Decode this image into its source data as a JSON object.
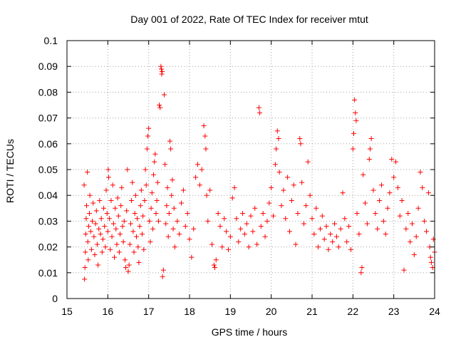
{
  "chart_data": {
    "type": "scatter",
    "title": "Day 001 of 2022, Rate Of TEC Index for receiver mtut",
    "xlabel": "GPS time / hours",
    "ylabel": "ROTI / TECUs",
    "xlim": [
      15,
      24
    ],
    "ylim": [
      0,
      0.1
    ],
    "x_ticks": [
      "15",
      "16",
      "17",
      "18",
      "19",
      "20",
      "21",
      "22",
      "23",
      "24"
    ],
    "y_ticks": [
      "0",
      "0.01",
      "0.02",
      "0.03",
      "0.04",
      "0.05",
      "0.06",
      "0.07",
      "0.08",
      "0.09",
      "0.1"
    ],
    "grid": true,
    "marker": "+",
    "color": "#ff0000",
    "series": [
      {
        "points": [
          [
            15.42,
            0.044
          ],
          [
            15.43,
            0.0075
          ],
          [
            15.44,
            0.012
          ],
          [
            15.45,
            0.018
          ],
          [
            15.46,
            0.025
          ],
          [
            15.47,
            0.031
          ],
          [
            15.48,
            0.036
          ],
          [
            15.5,
            0.049
          ],
          [
            15.51,
            0.022
          ],
          [
            15.52,
            0.015
          ],
          [
            15.53,
            0.028
          ],
          [
            15.55,
            0.033
          ],
          [
            15.56,
            0.04
          ],
          [
            15.58,
            0.026
          ],
          [
            15.6,
            0.019
          ],
          [
            15.62,
            0.03
          ],
          [
            15.64,
            0.037
          ],
          [
            15.66,
            0.024
          ],
          [
            15.68,
            0.017
          ],
          [
            15.7,
            0.029
          ],
          [
            15.72,
            0.034
          ],
          [
            15.74,
            0.021
          ],
          [
            15.76,
            0.013
          ],
          [
            15.78,
            0.027
          ],
          [
            15.8,
            0.038
          ],
          [
            15.82,
            0.025
          ],
          [
            15.84,
            0.031
          ],
          [
            15.86,
            0.018
          ],
          [
            15.88,
            0.023
          ],
          [
            15.9,
            0.035
          ],
          [
            15.92,
            0.028
          ],
          [
            15.94,
            0.02
          ],
          [
            15.96,
            0.042
          ],
          [
            15.98,
            0.033
          ],
          [
            16.0,
            0.026
          ],
          [
            16.01,
            0.05
          ],
          [
            16.02,
            0.047
          ],
          [
            16.04,
            0.031
          ],
          [
            16.06,
            0.019
          ],
          [
            16.08,
            0.038
          ],
          [
            16.1,
            0.024
          ],
          [
            16.12,
            0.044
          ],
          [
            16.14,
            0.029
          ],
          [
            16.16,
            0.016
          ],
          [
            16.18,
            0.035
          ],
          [
            16.2,
            0.027
          ],
          [
            16.22,
            0.021
          ],
          [
            16.24,
            0.039
          ],
          [
            16.26,
            0.032
          ],
          [
            16.28,
            0.018
          ],
          [
            16.3,
            0.025
          ],
          [
            16.32,
            0.036
          ],
          [
            16.34,
            0.043
          ],
          [
            16.36,
            0.028
          ],
          [
            16.38,
            0.022
          ],
          [
            16.4,
            0.03
          ],
          [
            16.42,
            0.015
          ],
          [
            16.44,
            0.012
          ],
          [
            16.46,
            0.034
          ],
          [
            16.48,
            0.05
          ],
          [
            16.5,
            0.0105
          ],
          [
            16.52,
            0.013
          ],
          [
            16.54,
            0.021
          ],
          [
            16.56,
            0.029
          ],
          [
            16.58,
            0.038
          ],
          [
            16.6,
            0.045
          ],
          [
            16.62,
            0.026
          ],
          [
            16.64,
            0.018
          ],
          [
            16.66,
            0.033
          ],
          [
            16.68,
            0.04
          ],
          [
            16.7,
            0.024
          ],
          [
            16.72,
            0.031
          ],
          [
            16.74,
            0.02
          ],
          [
            16.76,
            0.014
          ],
          [
            16.78,
            0.028
          ],
          [
            16.8,
            0.036
          ],
          [
            16.82,
            0.042
          ],
          [
            16.84,
            0.025
          ],
          [
            16.86,
            0.032
          ],
          [
            16.88,
            0.019
          ],
          [
            16.9,
            0.038
          ],
          [
            16.92,
            0.05
          ],
          [
            16.94,
            0.044
          ],
          [
            16.96,
            0.058
          ],
          [
            16.98,
            0.063
          ],
          [
            17.0,
            0.066
          ],
          [
            17.02,
            0.03
          ],
          [
            17.04,
            0.022
          ],
          [
            17.06,
            0.035
          ],
          [
            17.08,
            0.041
          ],
          [
            17.1,
            0.027
          ],
          [
            17.12,
            0.048
          ],
          [
            17.14,
            0.053
          ],
          [
            17.16,
            0.056
          ],
          [
            17.18,
            0.033
          ],
          [
            17.2,
            0.038
          ],
          [
            17.22,
            0.045
          ],
          [
            17.24,
            0.03
          ],
          [
            17.26,
            0.075
          ],
          [
            17.28,
            0.074
          ],
          [
            17.3,
            0.09
          ],
          [
            17.31,
            0.089
          ],
          [
            17.32,
            0.087
          ],
          [
            17.33,
            0.088
          ],
          [
            17.34,
            0.0085
          ],
          [
            17.36,
            0.011
          ],
          [
            17.38,
            0.079
          ],
          [
            17.4,
            0.052
          ],
          [
            17.42,
            0.029
          ],
          [
            17.44,
            0.036
          ],
          [
            17.46,
            0.043
          ],
          [
            17.48,
            0.024
          ],
          [
            17.5,
            0.033
          ],
          [
            17.52,
            0.061
          ],
          [
            17.54,
            0.058
          ],
          [
            17.56,
            0.04
          ],
          [
            17.58,
            0.046
          ],
          [
            17.6,
            0.027
          ],
          [
            17.62,
            0.035
          ],
          [
            17.64,
            0.02
          ],
          [
            17.7,
            0.03
          ],
          [
            17.75,
            0.025
          ],
          [
            17.8,
            0.037
          ],
          [
            17.85,
            0.042
          ],
          [
            17.9,
            0.028
          ],
          [
            17.95,
            0.033
          ],
          [
            18.0,
            0.023
          ],
          [
            18.05,
            0.016
          ],
          [
            18.1,
            0.027
          ],
          [
            18.15,
            0.047
          ],
          [
            18.2,
            0.052
          ],
          [
            18.25,
            0.044
          ],
          [
            18.3,
            0.05
          ],
          [
            18.35,
            0.067
          ],
          [
            18.38,
            0.063
          ],
          [
            18.4,
            0.058
          ],
          [
            18.42,
            0.04
          ],
          [
            18.45,
            0.03
          ],
          [
            18.5,
            0.042
          ],
          [
            18.55,
            0.021
          ],
          [
            18.6,
            0.013
          ],
          [
            18.62,
            0.012
          ],
          [
            18.65,
            0.015
          ],
          [
            18.7,
            0.033
          ],
          [
            18.75,
            0.028
          ],
          [
            18.8,
            0.02
          ],
          [
            18.85,
            0.031
          ],
          [
            18.9,
            0.026
          ],
          [
            18.95,
            0.019
          ],
          [
            19.0,
            0.024
          ],
          [
            19.05,
            0.039
          ],
          [
            19.1,
            0.043
          ],
          [
            19.15,
            0.031
          ],
          [
            19.2,
            0.022
          ],
          [
            19.25,
            0.027
          ],
          [
            19.3,
            0.033
          ],
          [
            19.35,
            0.025
          ],
          [
            19.4,
            0.029
          ],
          [
            19.45,
            0.02
          ],
          [
            19.5,
            0.032
          ],
          [
            19.55,
            0.026
          ],
          [
            19.6,
            0.035
          ],
          [
            19.65,
            0.021
          ],
          [
            19.7,
            0.074
          ],
          [
            19.72,
            0.072
          ],
          [
            19.75,
            0.028
          ],
          [
            19.8,
            0.033
          ],
          [
            19.85,
            0.024
          ],
          [
            19.9,
            0.03
          ],
          [
            19.95,
            0.037
          ],
          [
            20.0,
            0.043
          ],
          [
            20.05,
            0.032
          ],
          [
            20.1,
            0.052
          ],
          [
            20.12,
            0.058
          ],
          [
            20.15,
            0.065
          ],
          [
            20.18,
            0.062
          ],
          [
            20.2,
            0.049
          ],
          [
            20.25,
            0.036
          ],
          [
            20.3,
            0.042
          ],
          [
            20.35,
            0.031
          ],
          [
            20.4,
            0.047
          ],
          [
            20.45,
            0.026
          ],
          [
            20.5,
            0.038
          ],
          [
            20.55,
            0.044
          ],
          [
            20.6,
            0.021
          ],
          [
            20.65,
            0.033
          ],
          [
            20.7,
            0.062
          ],
          [
            20.72,
            0.06
          ],
          [
            20.75,
            0.045
          ],
          [
            20.8,
            0.029
          ],
          [
            20.85,
            0.036
          ],
          [
            20.9,
            0.053
          ],
          [
            20.95,
            0.04
          ],
          [
            21.0,
            0.031
          ],
          [
            21.05,
            0.025
          ],
          [
            21.1,
            0.035
          ],
          [
            21.15,
            0.02
          ],
          [
            21.2,
            0.027
          ],
          [
            21.25,
            0.032
          ],
          [
            21.3,
            0.023
          ],
          [
            21.35,
            0.028
          ],
          [
            21.4,
            0.019
          ],
          [
            21.45,
            0.025
          ],
          [
            21.5,
            0.022
          ],
          [
            21.55,
            0.029
          ],
          [
            21.6,
            0.024
          ],
          [
            21.65,
            0.02
          ],
          [
            21.7,
            0.027
          ],
          [
            21.75,
            0.041
          ],
          [
            21.8,
            0.031
          ],
          [
            21.85,
            0.022
          ],
          [
            21.9,
            0.028
          ],
          [
            21.95,
            0.019
          ],
          [
            22.0,
            0.058
          ],
          [
            22.02,
            0.064
          ],
          [
            22.04,
            0.077
          ],
          [
            22.06,
            0.072
          ],
          [
            22.08,
            0.069
          ],
          [
            22.1,
            0.033
          ],
          [
            22.15,
            0.025
          ],
          [
            22.2,
            0.01
          ],
          [
            22.22,
            0.012
          ],
          [
            22.25,
            0.048
          ],
          [
            22.3,
            0.037
          ],
          [
            22.35,
            0.029
          ],
          [
            22.4,
            0.054
          ],
          [
            22.42,
            0.058
          ],
          [
            22.45,
            0.062
          ],
          [
            22.5,
            0.042
          ],
          [
            22.55,
            0.033
          ],
          [
            22.6,
            0.027
          ],
          [
            22.65,
            0.038
          ],
          [
            22.7,
            0.044
          ],
          [
            22.75,
            0.03
          ],
          [
            22.8,
            0.025
          ],
          [
            22.85,
            0.035
          ],
          [
            22.9,
            0.041
          ],
          [
            22.95,
            0.054
          ],
          [
            23.0,
            0.047
          ],
          [
            23.05,
            0.053
          ],
          [
            23.1,
            0.043
          ],
          [
            23.15,
            0.032
          ],
          [
            23.2,
            0.038
          ],
          [
            23.25,
            0.011
          ],
          [
            23.3,
            0.027
          ],
          [
            23.35,
            0.033
          ],
          [
            23.4,
            0.022
          ],
          [
            23.45,
            0.029
          ],
          [
            23.5,
            0.017
          ],
          [
            23.55,
            0.024
          ],
          [
            23.6,
            0.035
          ],
          [
            23.65,
            0.049
          ],
          [
            23.7,
            0.043
          ],
          [
            23.75,
            0.03
          ],
          [
            23.8,
            0.026
          ],
          [
            23.85,
            0.041
          ],
          [
            23.88,
            0.02
          ],
          [
            23.9,
            0.016
          ],
          [
            23.92,
            0.014
          ],
          [
            23.95,
            0.012
          ],
          [
            23.97,
            0.023
          ],
          [
            24.0,
            0.018
          ]
        ]
      }
    ]
  }
}
